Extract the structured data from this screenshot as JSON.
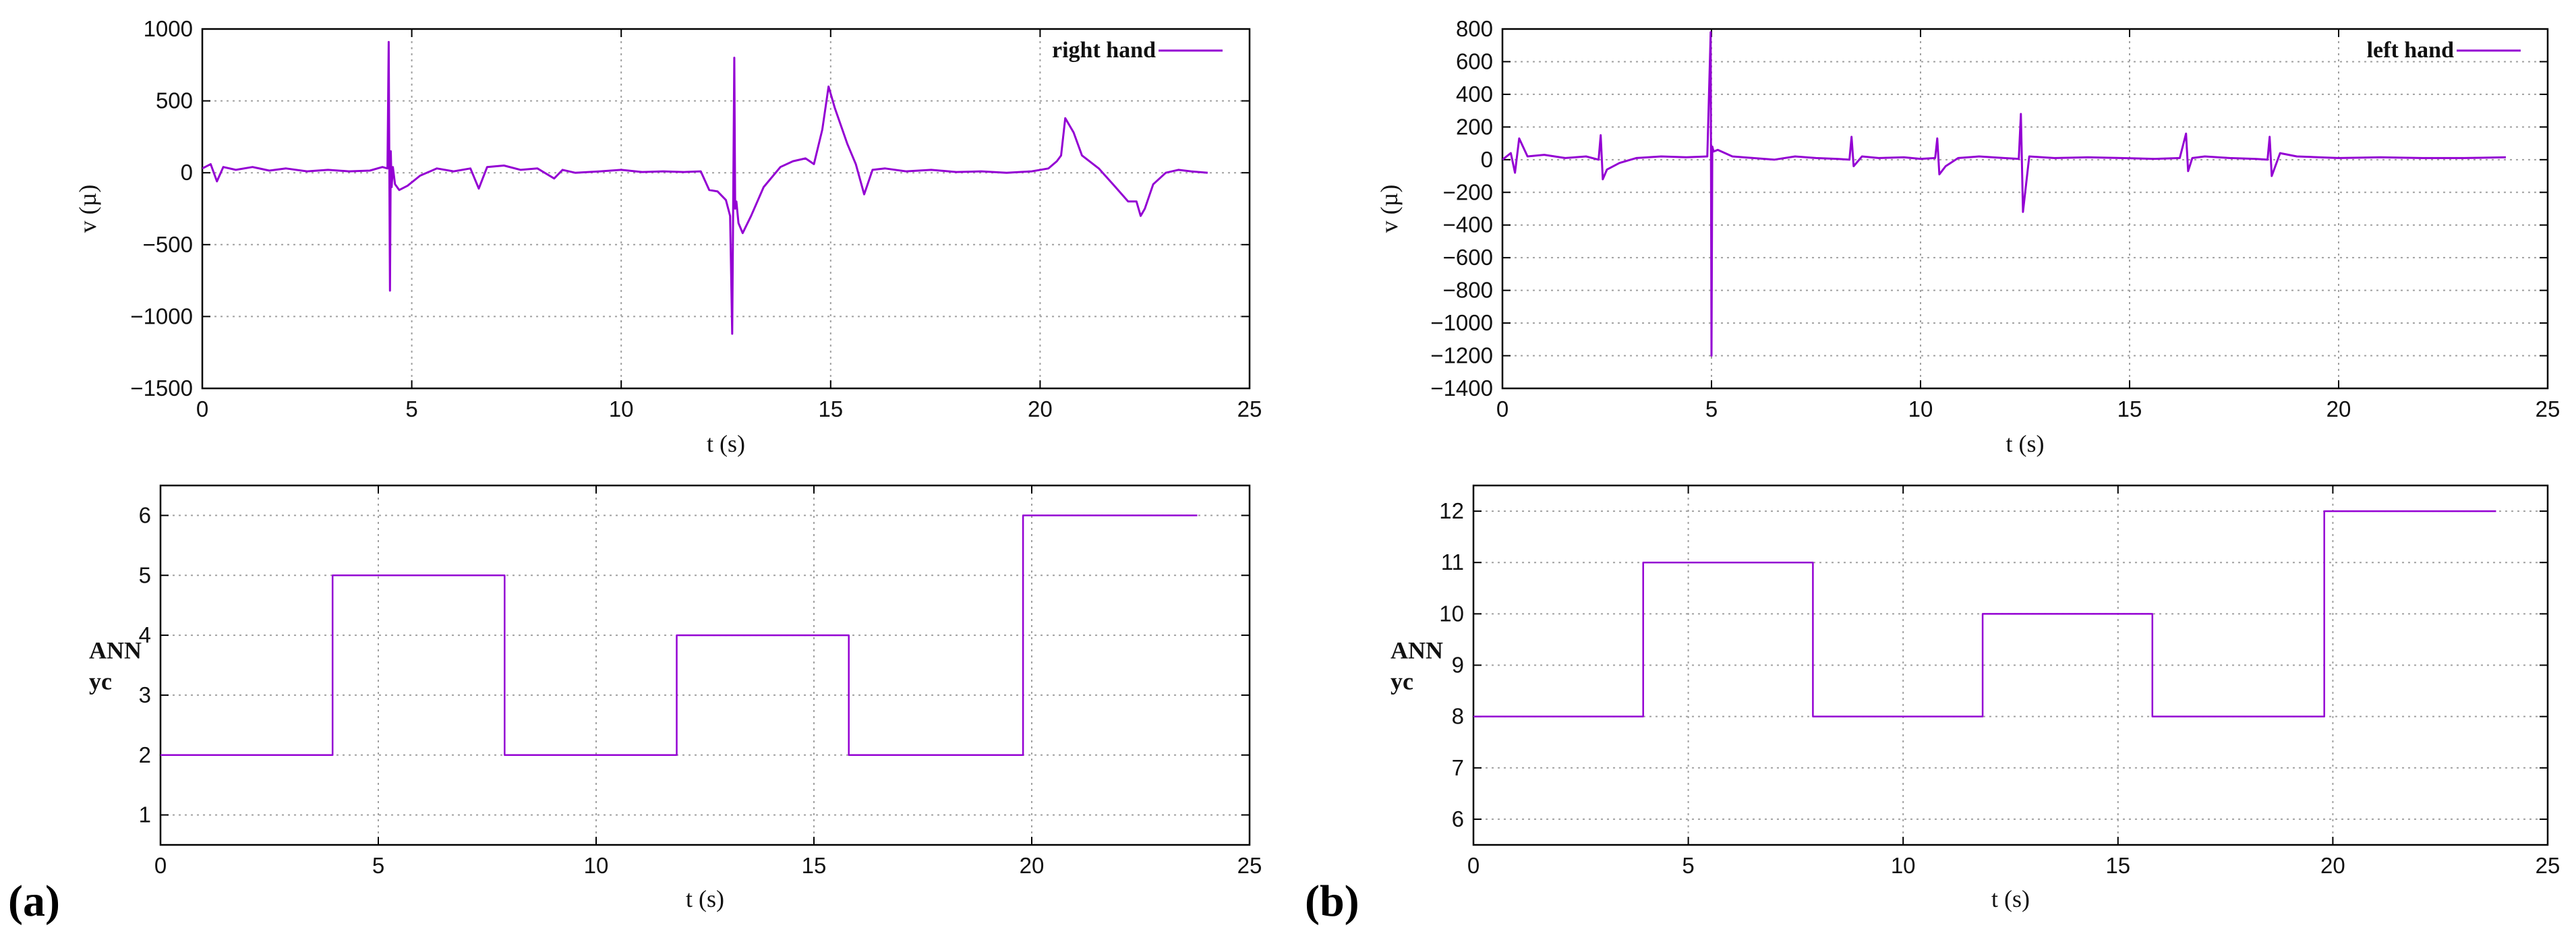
{
  "figure": {
    "panel_labels": [
      "(a)",
      "(b)"
    ],
    "colors": {
      "series": "#9400d3",
      "grid": "#a0a0a0",
      "axis": "#000000"
    }
  },
  "chart_data": [
    {
      "id": "a-top",
      "type": "line",
      "title": "",
      "xlabel": "t (s)",
      "ylabel": "v (µ)",
      "xlim": [
        0,
        25
      ],
      "ylim": [
        -1500,
        1000
      ],
      "xticks": [
        0,
        5,
        10,
        15,
        20,
        25
      ],
      "yticks": [
        -1500,
        -1000,
        -500,
        0,
        500,
        1000
      ],
      "grid": true,
      "legend": {
        "position": "top-right",
        "entries": [
          "right hand"
        ]
      },
      "series": [
        {
          "name": "right hand",
          "x": [
            0,
            0.2,
            0.35,
            0.5,
            0.8,
            1.2,
            1.6,
            2.0,
            2.5,
            3.0,
            3.5,
            4.0,
            4.3,
            4.42,
            4.45,
            4.48,
            4.5,
            4.52,
            4.55,
            4.6,
            4.7,
            4.9,
            5.2,
            5.6,
            6.0,
            6.4,
            6.6,
            6.8,
            7.2,
            7.6,
            8.0,
            8.4,
            8.6,
            8.9,
            9.5,
            10,
            10.5,
            11,
            11.5,
            11.9,
            12.1,
            12.3,
            12.5,
            12.6,
            12.65,
            12.7,
            12.72,
            12.75,
            12.8,
            12.9,
            13.1,
            13.4,
            13.8,
            14.1,
            14.4,
            14.6,
            14.8,
            14.95,
            15.1,
            15.4,
            15.6,
            15.8,
            16.0,
            16.3,
            16.8,
            17.4,
            18.0,
            18.6,
            19.2,
            19.8,
            20.2,
            20.4,
            20.5,
            20.6,
            20.8,
            21.0,
            21.4,
            21.8,
            22.1,
            22.3,
            22.4,
            22.5,
            22.7,
            23.0,
            23.3,
            23.6,
            24.0
          ],
          "y": [
            30,
            60,
            -60,
            40,
            20,
            40,
            15,
            30,
            10,
            20,
            10,
            15,
            40,
            30,
            910,
            -820,
            150,
            -100,
            40,
            -80,
            -120,
            -90,
            -20,
            30,
            10,
            30,
            -110,
            40,
            50,
            20,
            30,
            -40,
            20,
            0,
            10,
            20,
            5,
            10,
            5,
            10,
            -120,
            -130,
            -190,
            -300,
            -1120,
            800,
            -250,
            -200,
            -350,
            -420,
            -300,
            -100,
            40,
            80,
            100,
            60,
            300,
            600,
            450,
            200,
            60,
            -150,
            20,
            30,
            10,
            20,
            5,
            10,
            0,
            10,
            30,
            80,
            120,
            380,
            280,
            120,
            30,
            -100,
            -200,
            -200,
            -300,
            -250,
            -80,
            0,
            20,
            10,
            0
          ]
        }
      ]
    },
    {
      "id": "a-bottom",
      "type": "line",
      "title": "",
      "xlabel": "t (s)",
      "ylabel": "ANN yc",
      "xlim": [
        0,
        25
      ],
      "ylim": [
        0.5,
        6.5
      ],
      "xticks": [
        0,
        5,
        10,
        15,
        20,
        25
      ],
      "yticks": [
        1,
        2,
        3,
        4,
        5,
        6
      ],
      "grid": true,
      "series": [
        {
          "name": "ANN yc",
          "x": [
            0,
            3.95,
            3.95,
            7.9,
            7.9,
            11.85,
            11.85,
            15.8,
            15.8,
            19.8,
            19.8,
            23.8
          ],
          "y": [
            2,
            2,
            5,
            5,
            2,
            2,
            4,
            4,
            2,
            2,
            6,
            6
          ]
        }
      ]
    },
    {
      "id": "b-top",
      "type": "line",
      "title": "",
      "xlabel": "t (s)",
      "ylabel": "v (µ)",
      "xlim": [
        0,
        25
      ],
      "ylim": [
        -1400,
        800
      ],
      "xticks": [
        0,
        5,
        10,
        15,
        20,
        25
      ],
      "yticks": [
        -1400,
        -1200,
        -1000,
        -800,
        -600,
        -400,
        -200,
        0,
        200,
        400,
        600,
        800
      ],
      "grid": true,
      "legend": {
        "position": "top-right",
        "entries": [
          "left hand"
        ]
      },
      "series": [
        {
          "name": "left hand",
          "x": [
            0,
            0.2,
            0.3,
            0.4,
            0.6,
            1.0,
            1.5,
            2.0,
            2.3,
            2.35,
            2.4,
            2.5,
            2.8,
            3.2,
            3.8,
            4.4,
            4.9,
            4.98,
            5.0,
            5.02,
            5.05,
            5.15,
            5.5,
            6.0,
            6.5,
            7.0,
            7.5,
            8.0,
            8.3,
            8.35,
            8.4,
            8.6,
            9.0,
            9.6,
            10.0,
            10.35,
            10.4,
            10.45,
            10.6,
            10.9,
            11.4,
            12.0,
            12.35,
            12.4,
            12.45,
            12.6,
            13.2,
            14.0,
            14.8,
            15.6,
            16.2,
            16.35,
            16.4,
            16.5,
            16.8,
            17.4,
            18.0,
            18.3,
            18.35,
            18.4,
            18.6,
            19.0,
            20.0,
            21.0,
            22.0,
            23.0,
            24.0
          ],
          "y": [
            0,
            40,
            -80,
            130,
            20,
            30,
            10,
            20,
            0,
            150,
            -120,
            -60,
            -20,
            10,
            20,
            15,
            20,
            780,
            -1200,
            80,
            50,
            60,
            20,
            10,
            0,
            20,
            10,
            5,
            0,
            140,
            -40,
            20,
            10,
            15,
            5,
            10,
            130,
            -90,
            -40,
            10,
            20,
            10,
            5,
            280,
            -320,
            20,
            10,
            15,
            10,
            5,
            10,
            160,
            -70,
            10,
            20,
            10,
            5,
            0,
            140,
            -100,
            40,
            20,
            10,
            15,
            10,
            10,
            15
          ]
        }
      ]
    },
    {
      "id": "b-bottom",
      "type": "line",
      "title": "",
      "xlabel": "t (s)",
      "ylabel": "ANN yc",
      "xlim": [
        0,
        25
      ],
      "ylim": [
        5.5,
        12.5
      ],
      "xticks": [
        0,
        5,
        10,
        15,
        20,
        25
      ],
      "yticks": [
        6,
        7,
        8,
        9,
        10,
        11,
        12
      ],
      "grid": true,
      "series": [
        {
          "name": "ANN yc",
          "x": [
            0,
            3.95,
            3.95,
            7.9,
            7.9,
            11.85,
            11.85,
            15.8,
            15.8,
            19.8,
            19.8,
            23.8
          ],
          "y": [
            8,
            8,
            11,
            11,
            8,
            8,
            10,
            10,
            8,
            8,
            12,
            12
          ]
        }
      ]
    }
  ]
}
